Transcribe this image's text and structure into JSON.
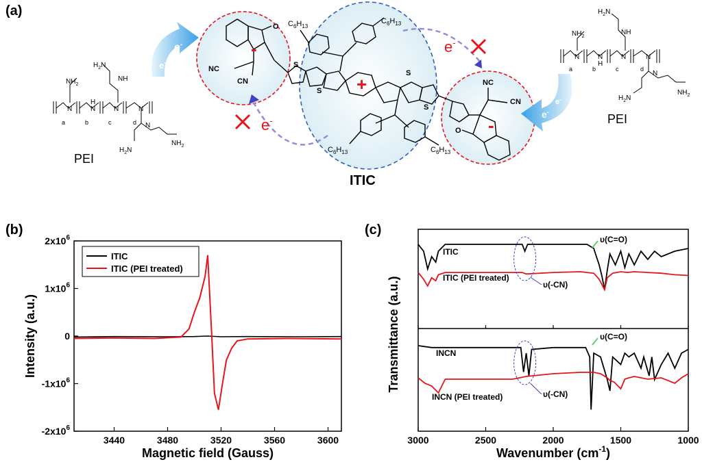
{
  "panels": {
    "a": "(a)",
    "b": "(b)",
    "c": "(c)"
  },
  "scheme": {
    "molecule_label": "ITIC",
    "pei_left": "PEI",
    "pei_right": "PEI",
    "electron": "e",
    "electron_sup": "-",
    "c6h13": "C",
    "c6h13_sub": "6",
    "c6h13_h": "H",
    "c6h13_sub2": "13",
    "nc": "NC",
    "cn": "CN",
    "o": "O",
    "s": "S",
    "nh2": "NH",
    "nh2_sub": "2",
    "h2n": "H",
    "h2n_n": "N",
    "n": "N",
    "h": "H",
    "plus": "+",
    "minus": "-",
    "sub_a": "a",
    "sub_b": "b",
    "sub_c": "c",
    "sub_d": "d"
  },
  "colors": {
    "black_series": "#000000",
    "red_series": "#e8141c",
    "arrow_blue": "#4aa8e8",
    "dashed_red": "#e8141c",
    "dashed_blue": "#3060c0",
    "dashed_purple": "#9080d0",
    "annot_blue": "#4040c0",
    "annot_green": "#60d060"
  },
  "chart_data": [
    {
      "type": "line",
      "panel": "(b)",
      "xlabel": "Magnetic field (Gauss)",
      "ylabel": "Intensity (a.u.)",
      "xlim": [
        3410,
        3610
      ],
      "ylim": [
        -2000000,
        2000000
      ],
      "x_ticks": [
        3440,
        3480,
        3520,
        3560,
        3600
      ],
      "y_ticks": [
        {
          "value": 2000000,
          "label": "2x10",
          "exp": "6"
        },
        {
          "value": 1000000,
          "label": "1x10",
          "exp": "6"
        },
        {
          "value": 0,
          "label": "0",
          "exp": ""
        },
        {
          "value": -1000000,
          "label": "-1x10",
          "exp": "6"
        },
        {
          "value": -2000000,
          "label": "-2x10",
          "exp": "6"
        }
      ],
      "legend": "top-left",
      "series": [
        {
          "name": "ITIC",
          "color": "#000000",
          "x": [
            3410,
            3440,
            3480,
            3500,
            3510,
            3520,
            3540,
            3580,
            3610
          ],
          "y": [
            -20000,
            -10000,
            -15000,
            -10000,
            0,
            -15000,
            -10000,
            -15000,
            -10000
          ]
        },
        {
          "name": "ITIC (PEI treated)",
          "color": "#e8141c",
          "x": [
            3410,
            3440,
            3470,
            3490,
            3496,
            3500,
            3504,
            3508,
            3510,
            3513,
            3515,
            3518,
            3521,
            3524,
            3528,
            3532,
            3540,
            3570,
            3610
          ],
          "y": [
            -50000,
            -40000,
            -50000,
            -20000,
            150000,
            500000,
            800000,
            1250000,
            1700000,
            0,
            -1200000,
            -1550000,
            -1000000,
            -500000,
            -250000,
            -100000,
            -60000,
            -50000,
            -60000
          ]
        }
      ]
    },
    {
      "type": "line",
      "panel": "(c)",
      "xlabel": "Wavenumber (cm",
      "xlabel_sup": "-1",
      "xlabel_end": ")",
      "ylabel": "Transmittance (a.u.)",
      "xlim": [
        3000,
        1000
      ],
      "x_ticks": [
        3000,
        2500,
        2000,
        1500,
        1000
      ],
      "annotations": [
        {
          "text": "υ(C=O)",
          "panel_part": "top"
        },
        {
          "text": "υ(-CN)",
          "panel_part": "top"
        },
        {
          "text": "υ(C=O)",
          "panel_part": "bottom"
        },
        {
          "text": "υ(-CN)",
          "panel_part": "bottom"
        }
      ],
      "series": [
        {
          "name": "ITIC",
          "color": "#000000",
          "part": "top",
          "x": [
            3000,
            2960,
            2930,
            2900,
            2870,
            2850,
            2800,
            2500,
            2230,
            2210,
            2190,
            2000,
            1750,
            1700,
            1680,
            1660,
            1640,
            1620,
            1600,
            1580,
            1540,
            1500,
            1470,
            1440,
            1400,
            1350,
            1300,
            1250,
            1200,
            1100,
            1000
          ],
          "y": [
            0.05,
            0.3,
            0.95,
            0.5,
            0.7,
            0.3,
            0.05,
            0.05,
            0.05,
            0.3,
            0.05,
            0.05,
            0.05,
            0.2,
            0.5,
            0.8,
            1.2,
            1.7,
            1.0,
            0.4,
            0.8,
            0.3,
            0.9,
            0.4,
            0.8,
            0.3,
            0.6,
            0.3,
            0.5,
            0.3,
            0.2
          ]
        },
        {
          "name": "ITIC (PEI treated)",
          "color": "#e8141c",
          "part": "top",
          "x": [
            3000,
            2960,
            2930,
            2900,
            2870,
            2850,
            2800,
            2500,
            2230,
            2200,
            2000,
            1800,
            1700,
            1660,
            1620,
            1600,
            1560,
            1500,
            1450,
            1400,
            1300,
            1200,
            1100,
            1000
          ],
          "y": [
            0.05,
            0.5,
            0.95,
            0.4,
            0.6,
            0.2,
            0.05,
            0.05,
            0.05,
            0.15,
            0.05,
            0.0,
            0.1,
            0.5,
            1.2,
            0.4,
            0.1,
            0.0,
            0.05,
            0.0,
            0.05,
            0.1,
            0.2,
            0.25
          ]
        },
        {
          "name": "INCN",
          "color": "#000000",
          "part": "bottom",
          "x": [
            3000,
            2900,
            2500,
            2240,
            2220,
            2200,
            2180,
            2160,
            2000,
            1760,
            1730,
            1720,
            1700,
            1650,
            1600,
            1580,
            1560,
            1500,
            1470,
            1440,
            1400,
            1350,
            1330,
            1290,
            1270,
            1250,
            1200,
            1150,
            1100,
            1050,
            1000
          ],
          "y": [
            0.0,
            0.05,
            0.05,
            0.05,
            0.7,
            0.2,
            0.8,
            0.1,
            0.05,
            0.05,
            0.3,
            1.7,
            0.2,
            0.3,
            0.9,
            1.2,
            0.3,
            0.5,
            0.2,
            0.3,
            0.2,
            0.6,
            0.3,
            0.8,
            0.3,
            0.9,
            0.5,
            0.2,
            0.6,
            0.2,
            0.1
          ]
        },
        {
          "name": "INCN (PEI treated)",
          "color": "#e8141c",
          "part": "bottom",
          "x": [
            3000,
            2950,
            2900,
            2850,
            2800,
            2700,
            2500,
            2300,
            2200,
            2000,
            1800,
            1700,
            1650,
            1600,
            1580,
            1550,
            1500,
            1470,
            1440,
            1400,
            1300,
            1200,
            1100,
            1050,
            1000
          ],
          "y": [
            0.55,
            0.75,
            0.85,
            1.1,
            0.6,
            0.6,
            0.6,
            0.6,
            0.5,
            0.4,
            0.35,
            0.35,
            0.4,
            0.55,
            0.65,
            0.7,
            0.95,
            0.6,
            0.55,
            0.5,
            0.6,
            0.55,
            0.75,
            0.55,
            0.4
          ]
        }
      ]
    }
  ]
}
